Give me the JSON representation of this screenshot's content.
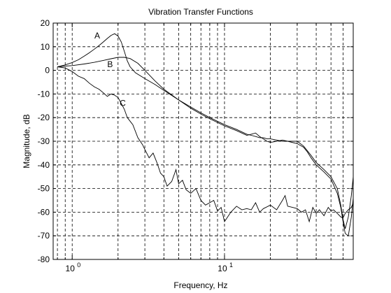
{
  "chart_data": {
    "type": "line",
    "title": "Vibration Transfer Functions",
    "xlabel": "Frequency, Hz",
    "ylabel": "Magnitude, dB",
    "xscale": "log",
    "xlim": [
      0.75,
      70
    ],
    "ylim": [
      -80,
      20
    ],
    "yticks": [
      20,
      10,
      0,
      -10,
      -20,
      -30,
      -40,
      -50,
      -60,
      -70,
      -80
    ],
    "ytick_labels": [
      "20",
      "10",
      "0",
      "-10",
      "-20",
      "-30",
      "-40",
      "-50",
      "-60",
      "-70",
      "-80"
    ],
    "xticks": [
      {
        "value": 1,
        "base": "10",
        "exp": "0"
      },
      {
        "value": 10,
        "base": "10",
        "exp": "1"
      }
    ],
    "grid": true,
    "grid_style": "dashed",
    "line_color": "#000000",
    "series": [
      {
        "name": "A",
        "label_at": [
          1.4,
          13.5
        ],
        "x": [
          0.8,
          0.9,
          1.0,
          1.1,
          1.2,
          1.3,
          1.4,
          1.5,
          1.6,
          1.7,
          1.8,
          1.9,
          2.0,
          2.1,
          2.2,
          2.3,
          2.4,
          2.6,
          3.0,
          3.5,
          4.0,
          5.0,
          6.0,
          7.0,
          8.0,
          10.0,
          12.0,
          14.0,
          15.0,
          16.0,
          17.0,
          18.0,
          19.0,
          20.0,
          22.0,
          24.0,
          26.0,
          30.0,
          33.0,
          35.0,
          37.0,
          40.0,
          45.0,
          50.0,
          55.0,
          58.0,
          60.0,
          62.0,
          65.0,
          68.0,
          70.0
        ],
        "y": [
          1.5,
          2.3,
          3.3,
          4.5,
          6.0,
          7.5,
          9.0,
          10.5,
          12.0,
          13.5,
          14.8,
          15.5,
          14.5,
          12.0,
          8.0,
          4.0,
          1.5,
          -1.0,
          -3.5,
          -6.0,
          -8.5,
          -12.5,
          -15.5,
          -18.0,
          -20.0,
          -23.0,
          -25.0,
          -27.0,
          -27.5,
          -28.0,
          -28.5,
          -28.5,
          -29.0,
          -29.0,
          -29.5,
          -30.0,
          -30.0,
          -30.0,
          -32.0,
          -34.0,
          -36.0,
          -39.0,
          -42.0,
          -45.0,
          -50.0,
          -57.0,
          -63.0,
          -67.0,
          -62.0,
          -53.0,
          -45.0
        ]
      },
      {
        "name": "B",
        "label_at": [
          1.7,
          1.3
        ],
        "x": [
          0.8,
          0.9,
          1.0,
          1.2,
          1.4,
          1.6,
          1.8,
          2.0,
          2.2,
          2.4,
          2.7,
          3.0,
          3.5,
          4.0,
          5.0,
          6.0,
          7.0,
          8.0,
          10.0,
          12.0,
          14.0,
          15.0,
          16.0,
          17.0,
          18.0,
          19.0,
          20.0,
          22.0,
          24.0,
          26.0,
          30.0,
          33.0,
          35.0,
          37.0,
          40.0,
          45.0,
          50.0,
          55.0,
          58.0,
          60.0,
          62.0,
          65.0,
          68.0,
          70.0
        ],
        "y": [
          1.5,
          1.8,
          2.0,
          2.7,
          3.4,
          4.2,
          4.9,
          5.5,
          5.5,
          5.0,
          3.0,
          0.0,
          -4.5,
          -8.0,
          -12.5,
          -16.0,
          -18.5,
          -20.5,
          -23.5,
          -25.5,
          -27.5,
          -27.0,
          -26.5,
          -28.0,
          -29.0,
          -30.0,
          -30.5,
          -30.0,
          -29.5,
          -30.0,
          -31.0,
          -32.5,
          -34.5,
          -37.0,
          -40.0,
          -43.0,
          -46.0,
          -52.0,
          -58.0,
          -64.0,
          -69.0,
          -70.0,
          -62.0,
          -54.0
        ]
      },
      {
        "name": "C",
        "label_at": [
          2.05,
          -15.0
        ],
        "x": [
          0.8,
          0.9,
          1.0,
          1.1,
          1.2,
          1.3,
          1.4,
          1.5,
          1.6,
          1.7,
          1.8,
          1.9,
          2.0,
          2.1,
          2.2,
          2.3,
          2.4,
          2.5,
          2.7,
          2.9,
          3.0,
          3.2,
          3.4,
          3.6,
          3.8,
          4.0,
          4.2,
          4.5,
          4.8,
          5.0,
          5.3,
          5.6,
          6.0,
          6.5,
          7.0,
          7.5,
          8.0,
          8.5,
          9.0,
          9.5,
          10.0,
          11.0,
          12.0,
          13.0,
          14.0,
          15.0,
          16.0,
          17.0,
          18.0,
          20.0,
          22.0,
          24.0,
          25.0,
          26.0,
          28.0,
          30.0,
          32.0,
          34.0,
          36.0,
          38.0,
          40.0,
          42.0,
          45.0,
          48.0,
          50.0,
          52.0,
          55.0,
          58.0,
          60.0,
          62.0,
          65.0,
          68.0,
          70.0
        ],
        "y": [
          1.5,
          1.0,
          -0.5,
          -2.5,
          -3.5,
          -5.5,
          -7.0,
          -8.0,
          -9.5,
          -11.0,
          -10.0,
          -10.5,
          -11.5,
          -14.0,
          -16.5,
          -20.0,
          -21.5,
          -23.0,
          -28.5,
          -31.5,
          -33.5,
          -37.0,
          -35.0,
          -39.0,
          -43.5,
          -45.0,
          -49.0,
          -47.0,
          -42.0,
          -48.0,
          -46.5,
          -50.5,
          -52.0,
          -50.0,
          -55.0,
          -57.0,
          -56.0,
          -55.0,
          -59.5,
          -58.0,
          -64.0,
          -60.0,
          -57.5,
          -59.0,
          -58.5,
          -59.0,
          -56.0,
          -60.0,
          -58.5,
          -57.0,
          -59.0,
          -55.0,
          -53.0,
          -57.5,
          -58.0,
          -58.5,
          -60.0,
          -59.0,
          -64.0,
          -58.0,
          -60.5,
          -59.0,
          -61.5,
          -58.0,
          -59.5,
          -59.0,
          -60.5,
          -62.0,
          -62.5,
          -60.5,
          -59.0,
          -58.0,
          -56.0
        ]
      }
    ]
  }
}
